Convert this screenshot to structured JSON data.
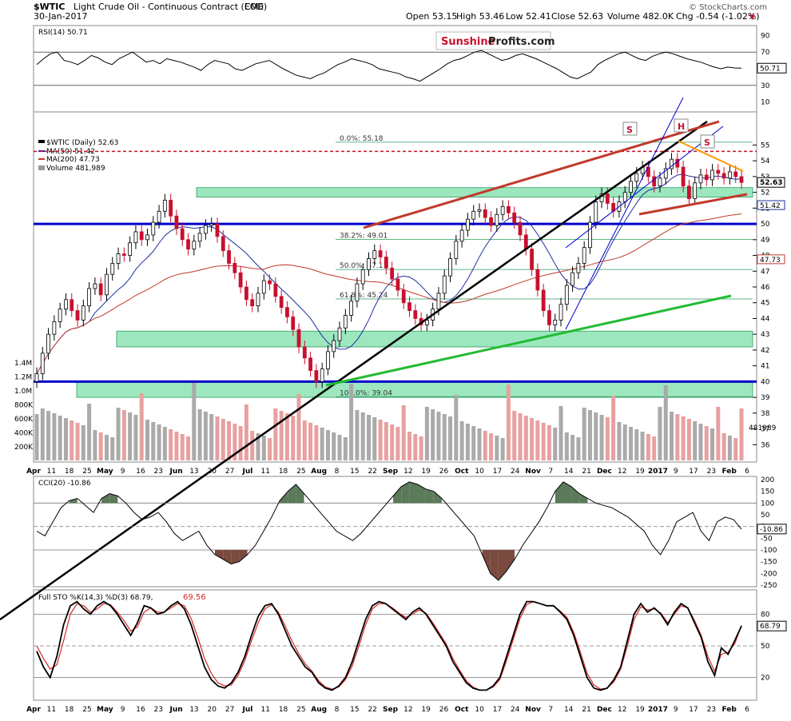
{
  "header": {
    "symbol": "$WTIC",
    "description": "Light Crude Oil - Continuous Contract (EOD)",
    "exchange": "CME",
    "date": "30-Jan-2017",
    "open": "Open 53.15",
    "high": "High 53.46",
    "low": "Low 52.41",
    "close": "Close 52.63",
    "volume": "Volume 482.0K",
    "chg": "Chg -0.54 (-1.02%)",
    "chg_arrow": "▼",
    "copyright": "© StockCharts.com"
  },
  "watermark": {
    "part1": "Sunshine",
    "part2": "Profits.com"
  },
  "colors": {
    "up": "#000000",
    "down": "#c8102e",
    "rsi": "#000000",
    "cci_fill": "#5a7a5a",
    "cci_neg_fill": "#7a4a3f",
    "stoch_k": "#000000",
    "stoch_d": "#d62728",
    "ma50": "#1f2f9f",
    "ma200": "#c0392b",
    "support": "#4cd48a",
    "blue_line": "#0000cc",
    "trend_green": "#22bb33",
    "trend_red": "#c0392b",
    "trend_black": "#000000",
    "trend_orange": "#ff9900"
  },
  "chart_data": [
    {
      "type": "line",
      "title": "RSI(14) 50.71",
      "ylim": [
        0,
        100
      ],
      "y_ticks": [
        "90",
        "70",
        "50",
        "30",
        "10"
      ],
      "last_value": "50.71",
      "values": [
        55,
        62,
        68,
        70,
        60,
        58,
        55,
        60,
        66,
        63,
        58,
        55,
        62,
        66,
        70,
        64,
        58,
        60,
        56,
        62,
        60,
        58,
        55,
        52,
        48,
        55,
        60,
        58,
        56,
        50,
        48,
        52,
        56,
        58,
        60,
        55,
        50,
        46,
        42,
        40,
        38,
        42,
        45,
        50,
        55,
        58,
        62,
        60,
        58,
        55,
        50,
        48,
        46,
        44,
        40,
        38,
        35,
        40,
        45,
        50,
        56,
        60,
        62,
        66,
        70,
        72,
        68,
        64,
        60,
        62,
        66,
        68,
        65,
        62,
        58,
        54,
        50,
        45,
        40,
        38,
        42,
        46,
        55,
        60,
        64,
        68,
        70,
        66,
        62,
        60,
        65,
        68,
        70,
        68,
        65,
        62,
        60,
        58,
        55,
        52,
        50,
        52,
        51,
        50.71
      ]
    },
    {
      "type": "candlestick",
      "title": "$WTIC (Daily) 52.63",
      "ylim": [
        35,
        57
      ],
      "y_ticks": [
        "55",
        "54",
        "53",
        "52",
        "51",
        "50",
        "49",
        "48",
        "47",
        "46",
        "45",
        "44",
        "43",
        "42",
        "41",
        "40",
        "39",
        "38",
        "37",
        "36"
      ],
      "legend": [
        "$WTIC (Daily) 52.63",
        "MA(50) 51.42",
        "MA(200) 47.73",
        "Volume 481,989"
      ],
      "last_close_label": "52.63",
      "ma50_label": "51.42",
      "ma200_label": "47.73",
      "volume_label": "481989",
      "volume_ticks": [
        "1.4M",
        "1.2M",
        "1.0M",
        "800K",
        "600K",
        "400K",
        "200K"
      ],
      "fib_labels": [
        "0.0%: 55.18",
        "38.2%: 49.01",
        "50.0%: 47.11",
        "61.8%: 45.24",
        "100.0%: 39.04"
      ],
      "fib_levels": [
        55.18,
        49.01,
        47.11,
        45.24,
        39.04
      ],
      "pattern_labels": [
        "S",
        "H",
        "S"
      ],
      "support_zones": [
        [
          51.7,
          52.3
        ],
        [
          42.2,
          43.2
        ],
        [
          39.0,
          40.0
        ]
      ],
      "blue_levels": [
        50.0,
        40.0
      ],
      "resistance_level": 54.6,
      "closes": [
        40.5,
        41.8,
        43.0,
        43.8,
        44.6,
        45.2,
        44.5,
        43.9,
        44.8,
        45.9,
        46.2,
        45.5,
        46.8,
        47.5,
        48.1,
        48.0,
        48.8,
        49.5,
        49.0,
        49.3,
        50.1,
        50.8,
        51.5,
        50.5,
        49.7,
        49.0,
        48.4,
        48.9,
        49.4,
        49.9,
        50.0,
        49.2,
        48.3,
        47.5,
        46.9,
        46.0,
        45.2,
        44.8,
        45.6,
        46.4,
        46.2,
        45.4,
        44.7,
        44.1,
        43.3,
        42.2,
        41.5,
        40.7,
        40.0,
        40.8,
        41.9,
        42.6,
        43.4,
        44.2,
        45.1,
        46.2,
        47.1,
        47.8,
        48.3,
        47.9,
        47.2,
        46.5,
        45.8,
        45.0,
        44.5,
        44.0,
        43.6,
        43.9,
        44.6,
        45.6,
        46.7,
        47.8,
        48.9,
        49.6,
        50.3,
        50.8,
        50.9,
        50.4,
        49.9,
        50.6,
        51.1,
        50.7,
        50.1,
        49.3,
        48.4,
        47.1,
        45.8,
        44.5,
        43.6,
        43.9,
        44.9,
        46.1,
        46.9,
        47.5,
        48.5,
        50.1,
        51.4,
        51.9,
        51.3,
        50.8,
        51.4,
        52.0,
        52.7,
        53.2,
        53.6,
        53.0,
        52.4,
        52.9,
        53.5,
        54.1,
        53.6,
        52.4,
        51.6,
        52.6,
        53.1,
        52.8,
        53.4,
        53.2,
        52.9,
        53.3,
        53.0,
        52.63
      ],
      "x_labels": [
        "Apr",
        "11",
        "18",
        "25",
        "May",
        "9",
        "16",
        "23",
        "Jun",
        "13",
        "20",
        "27",
        "Jul",
        "11",
        "18",
        "25",
        "Aug",
        "8",
        "15",
        "22",
        "Sep",
        "12",
        "19",
        "26",
        "Oct",
        "10",
        "17",
        "24",
        "Nov",
        "7",
        "14",
        "21",
        "Dec",
        "12",
        "19",
        "2017",
        "9",
        "17",
        "23",
        "Feb",
        "6"
      ]
    },
    {
      "type": "line",
      "title": "CCI(20) -10.86",
      "ylim": [
        -250,
        200
      ],
      "y_ticks": [
        "200",
        "150",
        "100",
        "50",
        "0",
        "-50",
        "-100",
        "-150",
        "-200",
        "-250"
      ],
      "last_value": "-10.86",
      "values": [
        -20,
        -40,
        20,
        80,
        110,
        120,
        90,
        60,
        120,
        140,
        130,
        100,
        60,
        30,
        40,
        60,
        20,
        -30,
        -60,
        -40,
        -20,
        -80,
        -120,
        -140,
        -160,
        -150,
        -120,
        -80,
        -20,
        40,
        110,
        150,
        180,
        140,
        100,
        60,
        20,
        -20,
        -40,
        -60,
        -30,
        10,
        50,
        90,
        130,
        170,
        190,
        180,
        160,
        150,
        120,
        80,
        40,
        0,
        -40,
        -120,
        -200,
        -230,
        -190,
        -140,
        -80,
        -30,
        20,
        80,
        150,
        190,
        170,
        140,
        120,
        100,
        90,
        80,
        60,
        40,
        10,
        -20,
        -80,
        -120,
        -60,
        20,
        40,
        60,
        -20,
        -60,
        20,
        40,
        30,
        -10.86
      ]
    },
    {
      "type": "line",
      "title": "Full STO %K(14,3) %D(3) 68.79, 69.56",
      "ylim": [
        0,
        100
      ],
      "y_ticks": [
        "80",
        "50",
        "20"
      ],
      "k_label": "68.79",
      "series": [
        {
          "name": "%K",
          "values": [
            45,
            30,
            20,
            40,
            70,
            88,
            92,
            85,
            80,
            88,
            92,
            88,
            80,
            70,
            60,
            72,
            88,
            86,
            80,
            82,
            88,
            92,
            85,
            70,
            50,
            30,
            18,
            12,
            10,
            15,
            25,
            40,
            60,
            78,
            88,
            90,
            80,
            65,
            50,
            40,
            30,
            25,
            15,
            10,
            8,
            12,
            20,
            35,
            55,
            75,
            88,
            92,
            90,
            85,
            80,
            75,
            82,
            86,
            80,
            70,
            60,
            50,
            35,
            25,
            15,
            10,
            8,
            8,
            12,
            20,
            40,
            60,
            80,
            92,
            92,
            90,
            88,
            88,
            82,
            75,
            60,
            40,
            20,
            10,
            8,
            10,
            18,
            30,
            55,
            80,
            90,
            82,
            86,
            80,
            70,
            82,
            90,
            86,
            72,
            58,
            35,
            22,
            48,
            42,
            55,
            68.79
          ]
        },
        {
          "name": "%D",
          "values": [
            50,
            38,
            28,
            32,
            55,
            80,
            90,
            88,
            82,
            85,
            90,
            89,
            82,
            74,
            64,
            68,
            82,
            86,
            82,
            82,
            86,
            90,
            88,
            76,
            58,
            38,
            24,
            15,
            12,
            13,
            22,
            36,
            55,
            72,
            85,
            89,
            82,
            69,
            55,
            43,
            33,
            26,
            17,
            11,
            9,
            11,
            18,
            31,
            50,
            70,
            85,
            90,
            90,
            86,
            81,
            77,
            80,
            84,
            81,
            72,
            62,
            52,
            38,
            27,
            17,
            11,
            8,
            8,
            11,
            18,
            36,
            56,
            76,
            89,
            92,
            90,
            88,
            88,
            83,
            77,
            63,
            44,
            24,
            13,
            9,
            10,
            16,
            28,
            50,
            75,
            87,
            84,
            85,
            81,
            72,
            80,
            88,
            86,
            74,
            60,
            40,
            26,
            42,
            44,
            52,
            69.56
          ]
        }
      ]
    }
  ],
  "panels": {
    "rsi_label": "RSI(14) 50.71",
    "cci_label": "CCI(20) -10.86",
    "sto_label_main": "Full STO %K(14,3) %D(3) 68.79,",
    "sto_label_d": "69.56"
  }
}
